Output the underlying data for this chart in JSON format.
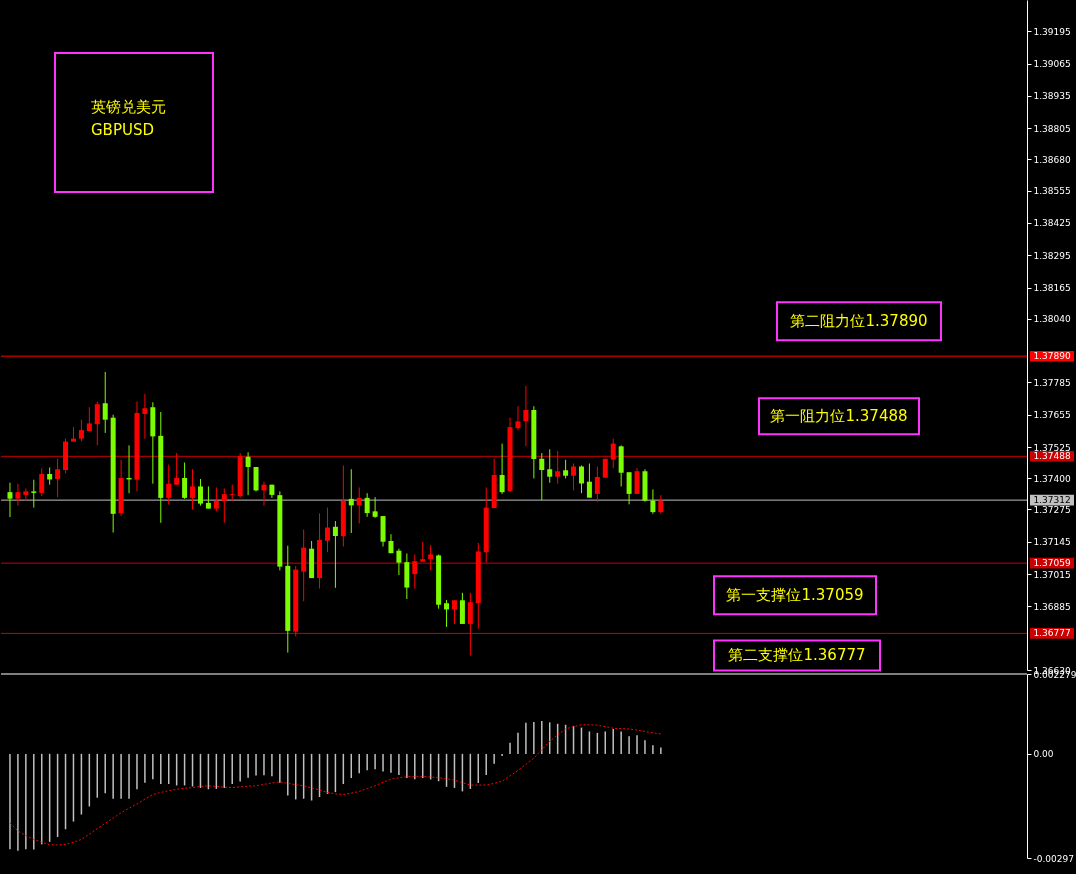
{
  "chart_data": [
    {
      "type": "candlestick",
      "title": "英镑兑美元",
      "subtitle": "GBPUSD",
      "categories": [
        null,
        null,
        null,
        null,
        null,
        null,
        null,
        null,
        null,
        null,
        null,
        null,
        null,
        null,
        null,
        null,
        null,
        null,
        null,
        null,
        null,
        null,
        null,
        null,
        null,
        null,
        null,
        null,
        null,
        null,
        null,
        null,
        null,
        null,
        null,
        null,
        null,
        null,
        null,
        null,
        null,
        null,
        null,
        null,
        null,
        null,
        null,
        null,
        null,
        null,
        null,
        null,
        null,
        null,
        null,
        null,
        null,
        null,
        null,
        null,
        null,
        null,
        null,
        null,
        null,
        null,
        null,
        null,
        null,
        null,
        null,
        null,
        null,
        null,
        null,
        null,
        null,
        null,
        null,
        null,
        null,
        null,
        null,
        null,
        null,
        null,
        null,
        null,
        null,
        null,
        null,
        null,
        null,
        null,
        null,
        null,
        null,
        null,
        null,
        null,
        null,
        null,
        null,
        null,
        null,
        null,
        null,
        null,
        null,
        null,
        null,
        null,
        null,
        null,
        null,
        null,
        null,
        null,
        null,
        null,
        null,
        null,
        null,
        null,
        null,
        null,
        null,
        null
      ],
      "ohlc": [
        [
          1.37344,
          1.37382,
          1.37244,
          1.37318
        ],
        [
          1.37318,
          1.37378,
          1.3729,
          1.37344
        ],
        [
          1.37333,
          1.37359,
          1.37309,
          1.37347
        ],
        [
          1.37347,
          1.37394,
          1.37282,
          1.37341
        ],
        [
          1.37341,
          1.3744,
          1.37328,
          1.37417
        ],
        [
          1.37417,
          1.37443,
          1.37374,
          1.37395
        ],
        [
          1.37397,
          1.37478,
          1.37324,
          1.37436
        ],
        [
          1.37433,
          1.37559,
          1.3742,
          1.37547
        ],
        [
          1.37547,
          1.37605,
          1.37547,
          1.37559
        ],
        [
          1.37559,
          1.37635,
          1.37548,
          1.37593
        ],
        [
          1.37589,
          1.37685,
          1.37589,
          1.3762
        ],
        [
          1.37617,
          1.37708,
          1.37532,
          1.37697
        ],
        [
          1.37701,
          1.37827,
          1.37582,
          1.37635
        ],
        [
          1.37643,
          1.37655,
          1.37182,
          1.37257
        ],
        [
          1.37259,
          1.37474,
          1.37248,
          1.37401
        ],
        [
          1.37401,
          1.37532,
          1.3734,
          1.37395
        ],
        [
          1.37394,
          1.37708,
          1.37347,
          1.37662
        ],
        [
          1.37658,
          1.37739,
          1.37559,
          1.37681
        ],
        [
          1.37685,
          1.37705,
          1.37378,
          1.37568
        ],
        [
          1.3757,
          1.37666,
          1.37221,
          1.37321
        ],
        [
          1.37321,
          1.37455,
          1.37294,
          1.37378
        ],
        [
          1.37374,
          1.37501,
          1.37374,
          1.37401
        ],
        [
          1.37401,
          1.37463,
          1.37317,
          1.37321
        ],
        [
          1.37321,
          1.37436,
          1.37274,
          1.37367
        ],
        [
          1.37367,
          1.37397,
          1.3729,
          1.37298
        ],
        [
          1.37301,
          1.37367,
          1.37278,
          1.37278
        ],
        [
          1.37278,
          1.37363,
          1.37267,
          1.37309
        ],
        [
          1.37309,
          1.37359,
          1.37221,
          1.37336
        ],
        [
          1.37333,
          1.37374,
          1.37309,
          1.37336
        ],
        [
          1.37328,
          1.37501,
          1.37321,
          1.37488
        ],
        [
          1.37486,
          1.37504,
          1.37332,
          1.37445
        ],
        [
          1.37445,
          1.37445,
          1.37347,
          1.37351
        ],
        [
          1.37351,
          1.37386,
          1.3729,
          1.37374
        ],
        [
          1.37374,
          1.37374,
          1.37321,
          1.37333
        ],
        [
          1.37332,
          1.37347,
          1.3703,
          1.37045
        ],
        [
          1.37048,
          1.37129,
          1.367,
          1.36787
        ],
        [
          1.36784,
          1.37048,
          1.36765,
          1.37033
        ],
        [
          1.37025,
          1.37194,
          1.36906,
          1.37121
        ],
        [
          1.37117,
          1.37148,
          1.36999,
          1.36999
        ],
        [
          1.36999,
          1.37259,
          1.36957,
          1.37152
        ],
        [
          1.37149,
          1.37282,
          1.37103,
          1.37202
        ],
        [
          1.37205,
          1.37228,
          1.3696,
          1.37168
        ],
        [
          1.37167,
          1.37451,
          1.37126,
          1.3731
        ],
        [
          1.37317,
          1.37436,
          1.3718,
          1.37291
        ],
        [
          1.37291,
          1.37363,
          1.37218,
          1.37321
        ],
        [
          1.37321,
          1.3734,
          1.37245,
          1.3726
        ],
        [
          1.37267,
          1.37324,
          1.37241,
          1.37245
        ],
        [
          1.37248,
          1.37248,
          1.37126,
          1.37145
        ],
        [
          1.37148,
          1.37175,
          1.37099,
          1.37099
        ],
        [
          1.37109,
          1.37117,
          1.37011,
          1.37061
        ],
        [
          1.37063,
          1.37098,
          1.36915,
          1.36961
        ],
        [
          1.37015,
          1.37094,
          1.36957,
          1.37067
        ],
        [
          1.37065,
          1.37144,
          1.37065,
          1.37075
        ],
        [
          1.37076,
          1.37132,
          1.3703,
          1.37094
        ],
        [
          1.3709,
          1.37094,
          1.36876,
          1.36892
        ],
        [
          1.36898,
          1.36911,
          1.36803,
          1.36873
        ],
        [
          1.36873,
          1.3691,
          1.36815,
          1.3691
        ],
        [
          1.3691,
          1.3694,
          1.36815,
          1.36815
        ],
        [
          1.36815,
          1.3694,
          1.36688,
          1.36902
        ],
        [
          1.36899,
          1.3714,
          1.36796,
          1.37106
        ],
        [
          1.37103,
          1.37363,
          1.37061,
          1.37282
        ],
        [
          1.3728,
          1.37478,
          1.3728,
          1.37413
        ],
        [
          1.37413,
          1.37539,
          1.37337,
          1.37344
        ],
        [
          1.37349,
          1.37643,
          1.37345,
          1.37605
        ],
        [
          1.37601,
          1.37689,
          1.37593,
          1.37628
        ],
        [
          1.37629,
          1.3777,
          1.37529,
          1.37674
        ],
        [
          1.37674,
          1.37689,
          1.37399,
          1.37477
        ],
        [
          1.37478,
          1.37501,
          1.37312,
          1.37433
        ],
        [
          1.37436,
          1.37516,
          1.37382,
          1.37406
        ],
        [
          1.37406,
          1.37509,
          1.37378,
          1.37428
        ],
        [
          1.37432,
          1.37474,
          1.37399,
          1.3741
        ],
        [
          1.3741,
          1.37459,
          1.37351,
          1.37447
        ],
        [
          1.37447,
          1.37451,
          1.3734,
          1.37379
        ],
        [
          1.37386,
          1.37459,
          1.37322,
          1.37322
        ],
        [
          1.37337,
          1.37447,
          1.37305,
          1.37405
        ],
        [
          1.37402,
          1.37478,
          1.37402,
          1.37478
        ],
        [
          1.37475,
          1.37559,
          1.3744,
          1.37539
        ],
        [
          1.37528,
          1.37532,
          1.37367,
          1.37422
        ],
        [
          1.37424,
          1.37424,
          1.37295,
          1.37337
        ],
        [
          1.37337,
          1.3744,
          1.37337,
          1.37428
        ],
        [
          1.37428,
          1.37436,
          1.37306,
          1.3731
        ],
        [
          1.3731,
          1.37355,
          1.37257,
          1.37264
        ],
        [
          1.37264,
          1.37332,
          1.37257,
          1.3731
        ],
        null,
        null,
        null,
        null,
        null,
        null,
        null,
        null,
        null,
        null,
        null,
        null,
        null,
        null,
        null,
        null,
        null,
        null,
        null,
        null,
        null,
        null,
        null,
        null,
        null,
        null,
        null,
        null,
        null,
        null,
        null,
        null,
        null,
        null,
        null,
        null,
        null,
        null,
        null,
        null,
        null,
        null,
        null,
        null,
        null
      ],
      "colors": [
        "#7cfc00",
        "#ff0000",
        "#ff0000",
        "#7cfc00",
        "#ff0000",
        "#7cfc00",
        "#ff0000",
        "#ff0000",
        "#ff0000",
        "#ff0000",
        "#ff0000",
        "#ff0000",
        "#7cfc00",
        "#7cfc00",
        "#ff0000",
        "#7cfc00",
        "#ff0000",
        "#ff0000",
        "#7cfc00",
        "#7cfc00",
        "#ff0000",
        "#ff0000",
        "#7cfc00",
        "#ff0000",
        "#7cfc00",
        "#7cfc00",
        "#ff0000",
        "#ff0000",
        "#ff0000",
        "#ff0000",
        "#7cfc00",
        "#7cfc00",
        "#ff0000",
        "#7cfc00",
        "#7cfc00",
        "#7cfc00",
        "#ff0000",
        "#ff0000",
        "#7cfc00",
        "#ff0000",
        "#ff0000",
        "#7cfc00",
        "#ff0000",
        "#7cfc00",
        "#ff0000",
        "#7cfc00",
        "#7cfc00",
        "#7cfc00",
        "#7cfc00",
        "#7cfc00",
        "#7cfc00",
        "#ff0000",
        "#ff0000",
        "#ff0000",
        "#7cfc00",
        "#7cfc00",
        "#ff0000",
        "#7cfc00",
        "#ff0000",
        "#ff0000",
        "#ff0000",
        "#ff0000",
        "#7cfc00",
        "#ff0000",
        "#ff0000",
        "#ff0000",
        "#7cfc00",
        "#7cfc00",
        "#7cfc00",
        "#ff0000",
        "#7cfc00",
        "#ff0000",
        "#7cfc00",
        "#7cfc00",
        "#ff0000",
        "#ff0000",
        "#ff0000",
        "#7cfc00",
        "#7cfc00",
        "#ff0000",
        "#7cfc00",
        "#7cfc00",
        "#ff0000",
        null,
        null,
        null,
        null,
        null,
        null,
        null,
        null,
        null,
        null,
        null,
        null,
        null,
        null,
        null,
        null,
        null,
        null,
        null,
        null,
        null,
        null,
        null,
        null,
        null,
        null,
        null,
        null,
        null,
        null,
        null,
        null,
        null,
        null,
        null,
        null,
        null,
        null,
        null,
        null,
        null,
        null,
        null,
        null,
        null
      ],
      "ylim": [
        1.3663,
        1.3932
      ],
      "yticks": [
        1.39195,
        1.39065,
        1.38935,
        1.38805,
        {
          "value": 1.3868,
          "label": "1.38680"
        },
        1.38555,
        1.38425,
        1.38295,
        1.38165,
        {
          "value": 1.3804,
          "label": "1.38040"
        },
        1.37785,
        1.37655,
        1.37525,
        {
          "value": 1.374,
          "label": "1.37400"
        },
        1.37275,
        1.37145,
        1.37015,
        1.36885,
        {
          "value": 1.3663,
          "label": "1.36630"
        }
      ],
      "ref_lines": [
        {
          "axis": "y",
          "value": 1.3789,
          "label": "1.37890",
          "color": "#ff0000"
        },
        {
          "axis": "y",
          "value": 1.37488,
          "label": "1.37488",
          "color": "#cc0000"
        },
        {
          "axis": "y",
          "value": 1.37312,
          "label": "1.37312",
          "color": "#c0c0c0"
        },
        {
          "axis": "y",
          "value": 1.37059,
          "label": "1.37059",
          "color": "#cc0000"
        },
        {
          "axis": "y",
          "value": 1.36777,
          "label": "1.36777",
          "color": "#cc0000"
        }
      ],
      "annotations": [
        {
          "text": "第二阻力位1.37890",
          "y": 1.3789
        },
        {
          "text": "第一阻力位1.37488",
          "y": 1.37488
        },
        {
          "text": "第一支撑位1.37059",
          "y": 1.37059
        },
        {
          "text": "第二支撑位1.36777",
          "y": 1.36777
        }
      ],
      "grid": false
    },
    {
      "type": "bar",
      "categories": [
        null,
        null,
        null,
        null,
        null,
        null,
        null,
        null,
        null,
        null,
        null,
        null,
        null,
        null,
        null,
        null,
        null,
        null,
        null,
        null,
        null,
        null,
        null,
        null,
        null,
        null,
        null,
        null,
        null,
        null,
        null,
        null,
        null,
        null,
        null,
        null,
        null,
        null,
        null,
        null,
        null,
        null,
        null,
        null,
        null,
        null,
        null,
        null,
        null,
        null,
        null,
        null,
        null,
        null,
        null,
        null,
        null,
        null,
        null,
        null,
        null,
        null,
        null,
        null,
        null,
        null,
        null,
        null,
        null,
        null,
        null,
        null,
        null,
        null,
        null,
        null,
        null,
        null,
        null,
        null,
        null,
        null,
        null,
        null,
        null,
        null,
        null,
        null,
        null,
        null,
        null,
        null,
        null,
        null,
        null,
        null,
        null,
        null,
        null,
        null,
        null,
        null,
        null,
        null,
        null,
        null,
        null,
        null,
        null,
        null,
        null,
        null,
        null,
        null,
        null,
        null,
        null,
        null,
        null,
        null,
        null,
        null,
        null,
        null,
        null,
        null,
        null,
        null
      ],
      "series": [
        {
          "color": "#c0c0c0",
          "values": [
            -0.00272,
            -0.00276,
            -0.00272,
            -0.00273,
            -0.00258,
            -0.00251,
            -0.00237,
            -0.00215,
            -0.00193,
            -0.00173,
            -0.0015,
            -0.00125,
            -0.00112,
            -0.00128,
            -0.00128,
            -0.00128,
            -0.00101,
            -0.00082,
            -0.00072,
            -0.00086,
            -0.00086,
            -0.0009,
            -0.0009,
            -0.00093,
            -0.00097,
            -0.00101,
            -0.001,
            -0.00097,
            -0.00086,
            -0.00079,
            -0.00068,
            -0.00062,
            -0.00061,
            -0.00064,
            -0.00082,
            -0.00119,
            -0.0013,
            -0.00128,
            -0.00133,
            -0.00123,
            -0.00114,
            -0.00109,
            -0.00086,
            -0.00069,
            -0.00055,
            -0.00047,
            -0.00044,
            -0.0005,
            -0.00054,
            -0.0006,
            -0.00069,
            -0.00072,
            -0.00069,
            -0.00073,
            -0.00078,
            -0.00094,
            -0.00097,
            -0.00107,
            -0.001,
            -0.00083,
            -0.0006,
            -0.00028,
            -6e-05,
            0.00032,
            0.0006,
            0.00089,
            0.00091,
            0.00094,
            0.0009,
            0.00086,
            0.00083,
            0.0008,
            0.00075,
            0.00064,
            0.0006,
            0.00064,
            0.00071,
            0.00064,
            0.0005,
            0.00053,
            0.00039,
            0.00025,
            0.00018,
            null,
            null,
            null,
            null,
            null,
            null,
            null,
            null,
            null,
            null,
            null,
            null,
            null,
            null,
            null,
            null,
            null,
            null,
            null,
            null,
            null,
            null,
            null,
            null,
            null,
            null,
            null,
            null,
            null,
            null,
            null,
            null,
            null,
            null,
            null,
            null,
            null,
            null,
            null,
            null,
            null,
            null,
            null,
            null,
            null
          ]
        },
        {
          "type": "line",
          "color": "#ff0000",
          "line_style": "dotted",
          "values": [
            -0.00197,
            -0.0022,
            -0.00233,
            -0.00244,
            -0.00252,
            -0.00259,
            -0.0026,
            -0.00258,
            -0.00252,
            -0.00244,
            -0.00229,
            -0.00213,
            -0.00198,
            -0.00183,
            -0.00168,
            -0.00155,
            -0.00143,
            -0.00129,
            -0.00116,
            -0.0011,
            -0.00105,
            -0.00101,
            -0.00098,
            -0.00096,
            -0.00093,
            -0.00091,
            -0.00093,
            -0.00095,
            -0.00096,
            -0.00094,
            -0.00092,
            -0.00091,
            -0.00087,
            -0.00083,
            -0.0008,
            -0.00084,
            -0.00088,
            -0.00091,
            -0.00097,
            -0.00103,
            -0.0011,
            -0.00114,
            -0.00116,
            -0.00112,
            -0.00107,
            -0.00099,
            -0.00091,
            -0.00081,
            -0.00072,
            -0.00068,
            -0.00065,
            -0.00064,
            -0.00064,
            -0.00066,
            -0.00068,
            -0.00071,
            -0.00075,
            -0.00082,
            -0.00089,
            -0.00089,
            -0.00089,
            -0.00084,
            -0.00078,
            -0.00063,
            -0.00047,
            -0.0003,
            -0.00012,
            0.00012,
            0.00036,
            0.00054,
            0.00071,
            0.00078,
            0.00083,
            0.00083,
            0.00082,
            0.00078,
            0.00073,
            0.00072,
            0.00071,
            0.00068,
            0.00064,
            0.0006,
            0.00057,
            null,
            null,
            null,
            null,
            null,
            null,
            null,
            null,
            null,
            null,
            null,
            null,
            null,
            null,
            null,
            null,
            null,
            null,
            null,
            null,
            null,
            null,
            null,
            null,
            null,
            null,
            null,
            null,
            null,
            null,
            null,
            null,
            null,
            null,
            null,
            null,
            null,
            null,
            null,
            null,
            null,
            null,
            null,
            null,
            null
          ]
        }
      ],
      "ylim": [
        -0.00297,
        0.002279
      ],
      "yticks": [
        0.002279,
        {
          "value": 0,
          "label": "0.00"
        },
        -0.00297
      ],
      "grid": false
    }
  ]
}
